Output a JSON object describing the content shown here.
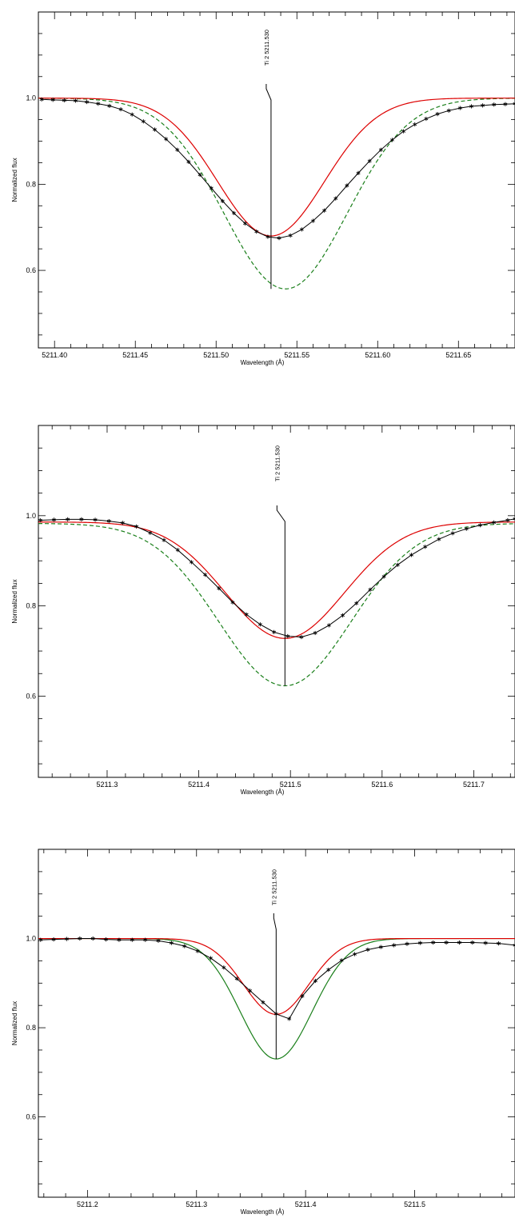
{
  "chart_data": [
    {
      "type": "line",
      "xlabel": "Wavelength (Å)",
      "ylabel": "Normalized flux",
      "xlim": [
        5211.39,
        5211.685
      ],
      "ylim": [
        0.42,
        1.2
      ],
      "xticks": [
        5211.4,
        5211.45,
        5211.5,
        5211.55,
        5211.6,
        5211.65
      ],
      "xtick_labels": [
        "5211.40",
        "5211.45",
        "5211.50",
        "5211.55",
        "5211.60",
        "5211.65"
      ],
      "yticks": [
        0.6,
        0.8,
        1.0
      ],
      "ytick_labels": [
        "0.6",
        "0.8",
        "1.0"
      ],
      "line_marker": {
        "label": "Ti  2 5211.530",
        "x": 5211.534
      },
      "series": [
        {
          "role": "observed",
          "color": "#000000",
          "marker": "asterisk",
          "style": "solid",
          "x": [
            5211.392,
            5211.399,
            5211.406,
            5211.413,
            5211.42,
            5211.427,
            5211.434,
            5211.441,
            5211.448,
            5211.455,
            5211.462,
            5211.469,
            5211.476,
            5211.483,
            5211.49,
            5211.497,
            5211.504,
            5211.511,
            5211.518,
            5211.525,
            5211.532,
            5211.539,
            5211.546,
            5211.553,
            5211.56,
            5211.567,
            5211.574,
            5211.581,
            5211.588,
            5211.595,
            5211.602,
            5211.609,
            5211.616,
            5211.623,
            5211.63,
            5211.637,
            5211.644,
            5211.651,
            5211.658,
            5211.665,
            5211.672,
            5211.679,
            5211.685
          ],
          "y": [
            0.997,
            0.996,
            0.995,
            0.994,
            0.991,
            0.987,
            0.982,
            0.974,
            0.962,
            0.946,
            0.927,
            0.905,
            0.88,
            0.852,
            0.822,
            0.791,
            0.761,
            0.733,
            0.709,
            0.69,
            0.678,
            0.675,
            0.681,
            0.695,
            0.715,
            0.739,
            0.767,
            0.797,
            0.826,
            0.854,
            0.88,
            0.903,
            0.923,
            0.939,
            0.952,
            0.963,
            0.971,
            0.977,
            0.981,
            0.983,
            0.985,
            0.986,
            0.987
          ]
        },
        {
          "role": "model",
          "color": "#dd0000",
          "style": "solid",
          "center": 5211.534,
          "depth": 0.32,
          "sigma": 0.033,
          "continuum": 1.0
        },
        {
          "role": "model-alt",
          "color": "#1a7f1a",
          "style": "dashed",
          "center": 5211.543,
          "depth": 0.443,
          "sigma": 0.038,
          "continuum": 1.0
        }
      ]
    },
    {
      "type": "line",
      "xlabel": "Wavelength (Å)",
      "ylabel": "Normalized flux",
      "xlim": [
        5211.225,
        5211.745
      ],
      "ylim": [
        0.42,
        1.2
      ],
      "xticks": [
        5211.3,
        5211.4,
        5211.5,
        5211.6,
        5211.7
      ],
      "xtick_labels": [
        "5211.3",
        "5211.4",
        "5211.5",
        "5211.6",
        "5211.7"
      ],
      "yticks": [
        0.6,
        0.8,
        1.0
      ],
      "ytick_labels": [
        "0.6",
        "0.8",
        "1.0"
      ],
      "line_marker": {
        "label": "Ti  2 5211.530",
        "x": 5211.494
      },
      "series": [
        {
          "role": "observed",
          "color": "#000000",
          "marker": "asterisk",
          "style": "solid",
          "x": [
            5211.227,
            5211.242,
            5211.257,
            5211.272,
            5211.287,
            5211.302,
            5211.317,
            5211.332,
            5211.347,
            5211.362,
            5211.377,
            5211.392,
            5211.407,
            5211.422,
            5211.437,
            5211.452,
            5211.467,
            5211.482,
            5211.497,
            5211.512,
            5211.527,
            5211.542,
            5211.557,
            5211.572,
            5211.587,
            5211.602,
            5211.617,
            5211.632,
            5211.647,
            5211.662,
            5211.677,
            5211.692,
            5211.707,
            5211.722,
            5211.737,
            5211.745
          ],
          "y": [
            0.99,
            0.991,
            0.992,
            0.992,
            0.991,
            0.988,
            0.984,
            0.976,
            0.962,
            0.946,
            0.924,
            0.897,
            0.869,
            0.839,
            0.808,
            0.781,
            0.759,
            0.742,
            0.733,
            0.731,
            0.74,
            0.757,
            0.779,
            0.806,
            0.836,
            0.865,
            0.891,
            0.913,
            0.931,
            0.948,
            0.961,
            0.971,
            0.979,
            0.985,
            0.99,
            0.993
          ]
        },
        {
          "role": "model",
          "color": "#dd0000",
          "style": "solid",
          "center": 5211.494,
          "depth": 0.258,
          "sigma": 0.065,
          "continuum": 0.986
        },
        {
          "role": "model-alt",
          "color": "#1a7f1a",
          "style": "dashed",
          "center": 5211.494,
          "depth": 0.36,
          "sigma": 0.072,
          "continuum": 0.983
        }
      ]
    },
    {
      "type": "line",
      "xlabel": "Wavelength (Å)",
      "ylabel": "Normalized flux",
      "xlim": [
        5211.155,
        5211.592
      ],
      "ylim": [
        0.42,
        1.2
      ],
      "xticks": [
        5211.2,
        5211.3,
        5211.4,
        5211.5
      ],
      "xtick_labels": [
        "5211.2",
        "5211.3",
        "5211.4",
        "5211.5"
      ],
      "yticks": [
        0.6,
        0.8,
        1.0
      ],
      "ytick_labels": [
        "0.6",
        "0.8",
        "1.0"
      ],
      "line_marker": {
        "label": "Ti  2 5211.530",
        "x": 5211.373
      },
      "series": [
        {
          "role": "observed",
          "color": "#000000",
          "marker": "asterisk",
          "style": "solid",
          "x": [
            5211.157,
            5211.169,
            5211.181,
            5211.193,
            5211.205,
            5211.217,
            5211.229,
            5211.241,
            5211.253,
            5211.265,
            5211.277,
            5211.289,
            5211.301,
            5211.313,
            5211.325,
            5211.337,
            5211.349,
            5211.361,
            5211.373,
            5211.385,
            5211.397,
            5211.409,
            5211.421,
            5211.433,
            5211.445,
            5211.457,
            5211.469,
            5211.481,
            5211.493,
            5211.505,
            5211.517,
            5211.529,
            5211.541,
            5211.553,
            5211.565,
            5211.577,
            5211.592
          ],
          "y": [
            0.997,
            0.998,
            0.999,
            1.0,
            1.0,
            0.998,
            0.997,
            0.997,
            0.997,
            0.995,
            0.99,
            0.983,
            0.972,
            0.956,
            0.935,
            0.91,
            0.883,
            0.857,
            0.831,
            0.82,
            0.871,
            0.905,
            0.93,
            0.951,
            0.965,
            0.975,
            0.981,
            0.985,
            0.988,
            0.99,
            0.991,
            0.991,
            0.991,
            0.991,
            0.99,
            0.989,
            0.985
          ]
        },
        {
          "role": "model",
          "color": "#dd0000",
          "style": "solid",
          "center": 5211.373,
          "depth": 0.17,
          "sigma": 0.03,
          "continuum": 1.0
        },
        {
          "role": "model-alt",
          "color": "#1a7f1a",
          "style": "solid",
          "center": 5211.373,
          "depth": 0.27,
          "sigma": 0.033,
          "continuum": 1.0
        }
      ]
    }
  ]
}
